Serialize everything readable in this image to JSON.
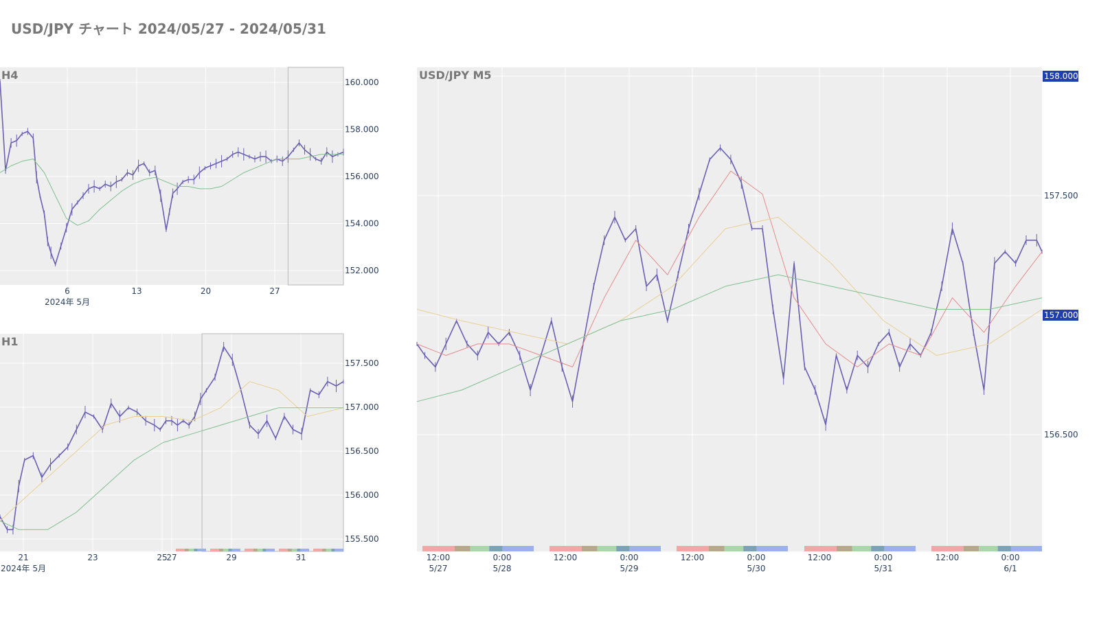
{
  "page": {
    "title": "USD/JPY チャート 2024/05/27 - 2024/05/31"
  },
  "colors": {
    "background": "#ffffff",
    "plot_bg": "#eeeeee",
    "grid": "#ffffff",
    "candle": "#6a5fb0",
    "ma_short": "#e58b8b",
    "ma_mid": "#e8cf94",
    "ma_long": "#7fbf8f",
    "price_tag_bg": "#1f3fae",
    "session_colors": [
      "#f2a7a7",
      "#b5a98a",
      "#a8d8a8",
      "#7aa3b8",
      "#9cb0ec"
    ]
  },
  "chart_data": [
    {
      "id": "h4",
      "label": "H4",
      "type": "line",
      "x_ticks": [
        "6",
        "13",
        "20",
        "27"
      ],
      "x_sublabel": "2024年 5月",
      "y_ticks": [
        "160.000",
        "158.000",
        "156.000",
        "154.000",
        "152.000"
      ],
      "ylim": [
        151.3,
        160.8
      ],
      "xlim": [
        1,
        32
      ],
      "highlight": [
        27,
        32
      ],
      "series": [
        {
          "role": "price",
          "x": [
            1,
            1.5,
            2,
            2.5,
            3,
            3.5,
            4,
            4.3,
            4.6,
            5,
            5.3,
            5.6,
            6,
            6.5,
            7,
            7.5,
            8,
            8.5,
            9,
            9.5,
            10,
            10.5,
            11,
            11.5,
            12,
            12.5,
            13,
            13.5,
            14,
            14.5,
            15,
            15.5,
            16,
            16.3,
            16.6,
            17,
            17.5,
            18,
            18.5,
            19,
            19.5,
            20,
            20.5,
            21,
            21.5,
            22,
            22.5,
            23,
            23.5,
            24,
            24.5,
            25,
            25.5,
            26,
            26.5,
            27,
            27.5,
            28,
            28.5,
            29,
            29.5,
            30,
            30.5,
            31,
            31.5,
            32
          ],
          "y": [
            160.2,
            156.3,
            157.5,
            157.6,
            157.9,
            158,
            157.7,
            156,
            155.2,
            154.4,
            153.2,
            152.7,
            152.2,
            153,
            153.8,
            154.6,
            154.9,
            155.2,
            155.5,
            155.6,
            155.5,
            155.7,
            155.6,
            155.8,
            155.9,
            156.2,
            156.1,
            156.5,
            156.6,
            156.2,
            156.3,
            155.2,
            153.7,
            154.5,
            155.3,
            155.5,
            155.8,
            155.9,
            155.9,
            156.2,
            156.4,
            156.5,
            156.6,
            156.7,
            156.8,
            157,
            157.1,
            157,
            156.9,
            156.8,
            156.9,
            156.9,
            156.7,
            156.8,
            156.7,
            156.9,
            157.2,
            157.5,
            157.2,
            157.0,
            156.8,
            156.7,
            157.1,
            156.9,
            157.0,
            157.1
          ]
        },
        {
          "role": "ma_long",
          "x": [
            1,
            2,
            3,
            4,
            5,
            6,
            7,
            8,
            9,
            10,
            11,
            12,
            13,
            14,
            15,
            16,
            17,
            18,
            19,
            20,
            21,
            22,
            23,
            24,
            25,
            26,
            27,
            28,
            29,
            30,
            31,
            32
          ],
          "y": [
            156.2,
            156.5,
            156.7,
            156.8,
            156.2,
            155.2,
            154.2,
            153.9,
            154.1,
            154.6,
            155.0,
            155.4,
            155.7,
            155.9,
            156.0,
            155.8,
            155.6,
            155.6,
            155.5,
            155.5,
            155.6,
            155.9,
            156.2,
            156.4,
            156.6,
            156.8,
            156.8,
            156.8,
            156.9,
            157.0,
            157.0,
            157.0
          ]
        }
      ]
    },
    {
      "id": "h1",
      "label": "H1",
      "type": "line",
      "x_ticks": [
        "21",
        "23",
        "25",
        "27",
        "29",
        "31"
      ],
      "x_sublabel": "2024年 5月",
      "y_ticks": [
        "157.500",
        "157.000",
        "156.500",
        "156.000",
        "155.500"
      ],
      "ylim": [
        155.35,
        157.85
      ],
      "xlim": [
        20.35,
        32.25
      ],
      "highlight": [
        27.35,
        32.25
      ],
      "series": [
        {
          "role": "price",
          "x": [
            20.35,
            20.6,
            20.8,
            21,
            21.2,
            21.5,
            21.8,
            22.1,
            22.4,
            22.7,
            23,
            23.3,
            23.6,
            23.9,
            24.2,
            24.5,
            24.8,
            25.1,
            25.4,
            25.7,
            25.9,
            26.1,
            26.3,
            26.5,
            26.7,
            26.9,
            27.1,
            27.3,
            27.5,
            27.8,
            28.1,
            28.4,
            28.7,
            29,
            29.3,
            29.6,
            29.9,
            30.2,
            30.5,
            30.8,
            31.1,
            31.4,
            31.7,
            32,
            32.25
          ],
          "y": [
            155.75,
            155.6,
            155.6,
            156.1,
            156.4,
            156.45,
            156.2,
            156.35,
            156.45,
            156.55,
            156.75,
            156.95,
            156.9,
            156.75,
            157.05,
            156.9,
            157.0,
            156.95,
            156.85,
            156.8,
            156.75,
            156.85,
            156.85,
            156.8,
            156.85,
            156.8,
            156.9,
            157.1,
            157.2,
            157.35,
            157.7,
            157.55,
            157.2,
            156.8,
            156.7,
            156.85,
            156.65,
            156.9,
            156.75,
            156.7,
            157.2,
            157.15,
            157.3,
            157.25,
            157.3
          ]
        },
        {
          "role": "ma_mid",
          "x": [
            20.35,
            21,
            22,
            23,
            24,
            25,
            26,
            27,
            28,
            29,
            30,
            31,
            32.25
          ],
          "y": [
            155.7,
            155.9,
            156.2,
            156.5,
            156.8,
            156.9,
            156.9,
            156.85,
            157.0,
            157.3,
            157.2,
            156.9,
            157.0
          ]
        },
        {
          "role": "ma_long",
          "x": [
            20.35,
            21,
            22,
            23,
            24,
            25,
            26,
            27,
            28,
            29,
            30,
            31,
            32.25
          ],
          "y": [
            155.7,
            155.6,
            155.6,
            155.8,
            156.1,
            156.4,
            156.6,
            156.7,
            156.8,
            156.9,
            157.0,
            157.0,
            157.0
          ]
        }
      ]
    },
    {
      "id": "m5",
      "label": "USD/JPY M5",
      "type": "line",
      "x_ticks": [
        {
          "line1": "12:00",
          "line2": "5/27"
        },
        {
          "line1": "0:00",
          "line2": "5/28"
        },
        {
          "line1": "12:00",
          "line2": ""
        },
        {
          "line1": "0:00",
          "line2": "5/29"
        },
        {
          "line1": "12:00",
          "line2": ""
        },
        {
          "line1": "0:00",
          "line2": "5/30"
        },
        {
          "line1": "12:00",
          "line2": ""
        },
        {
          "line1": "0:00",
          "line2": "5/31"
        },
        {
          "line1": "12:00",
          "line2": ""
        },
        {
          "line1": "0:00",
          "line2": "6/1"
        }
      ],
      "y_ticks": [
        "158.000",
        "157.500",
        "157.000",
        "156.500"
      ],
      "price_tags": [
        "158.000",
        "157.000"
      ],
      "ylim": [
        155.95,
        158.05
      ],
      "xlim": [
        6.5,
        125
      ],
      "series": [
        {
          "role": "price",
          "x": [
            6.5,
            8,
            10,
            12,
            14,
            16,
            18,
            20,
            22,
            24,
            26,
            28,
            30,
            32,
            34,
            36,
            38,
            40,
            42,
            44,
            46,
            48,
            50,
            52,
            54,
            56,
            58,
            60,
            62,
            64,
            66,
            68,
            70,
            72,
            74,
            76,
            78,
            80,
            82,
            84,
            86,
            88,
            90,
            92,
            94,
            96,
            98,
            100,
            102,
            104,
            106,
            108,
            110,
            112,
            114,
            116,
            118,
            120,
            122,
            124,
            125
          ],
          "y": [
            156.85,
            156.8,
            156.75,
            156.85,
            156.95,
            156.85,
            156.8,
            156.9,
            156.85,
            156.9,
            156.8,
            156.65,
            156.8,
            156.95,
            156.75,
            156.6,
            156.85,
            157.1,
            157.3,
            157.4,
            157.3,
            157.35,
            157.1,
            157.15,
            156.95,
            157.15,
            157.35,
            157.5,
            157.65,
            157.7,
            157.65,
            157.55,
            157.35,
            157.35,
            157.0,
            156.7,
            157.2,
            156.75,
            156.65,
            156.5,
            156.8,
            156.65,
            156.8,
            156.75,
            156.85,
            156.9,
            156.75,
            156.85,
            156.8,
            156.9,
            157.1,
            157.35,
            157.2,
            156.9,
            156.65,
            157.2,
            157.25,
            157.2,
            157.3,
            157.3,
            157.25
          ]
        },
        {
          "role": "ma_short",
          "x": [
            6.5,
            12,
            18,
            24,
            30,
            36,
            42,
            48,
            54,
            60,
            66,
            72,
            78,
            84,
            90,
            96,
            102,
            108,
            114,
            120,
            125
          ],
          "y": [
            156.85,
            156.8,
            156.85,
            156.85,
            156.8,
            156.75,
            157.05,
            157.3,
            157.15,
            157.4,
            157.6,
            157.5,
            157.05,
            156.85,
            156.75,
            156.85,
            156.8,
            157.05,
            156.9,
            157.1,
            157.25
          ]
        },
        {
          "role": "ma_mid",
          "x": [
            6.5,
            15,
            25,
            35,
            45,
            55,
            65,
            75,
            85,
            95,
            105,
            115,
            125
          ],
          "y": [
            157.0,
            156.95,
            156.9,
            156.85,
            156.95,
            157.1,
            157.35,
            157.4,
            157.2,
            156.95,
            156.8,
            156.85,
            157.0
          ]
        },
        {
          "role": "ma_long",
          "x": [
            6.5,
            15,
            25,
            35,
            45,
            55,
            65,
            75,
            85,
            95,
            105,
            115,
            125
          ],
          "y": [
            156.6,
            156.65,
            156.75,
            156.85,
            156.95,
            157.0,
            157.1,
            157.15,
            157.1,
            157.05,
            157.0,
            157.0,
            157.05
          ]
        }
      ]
    }
  ]
}
